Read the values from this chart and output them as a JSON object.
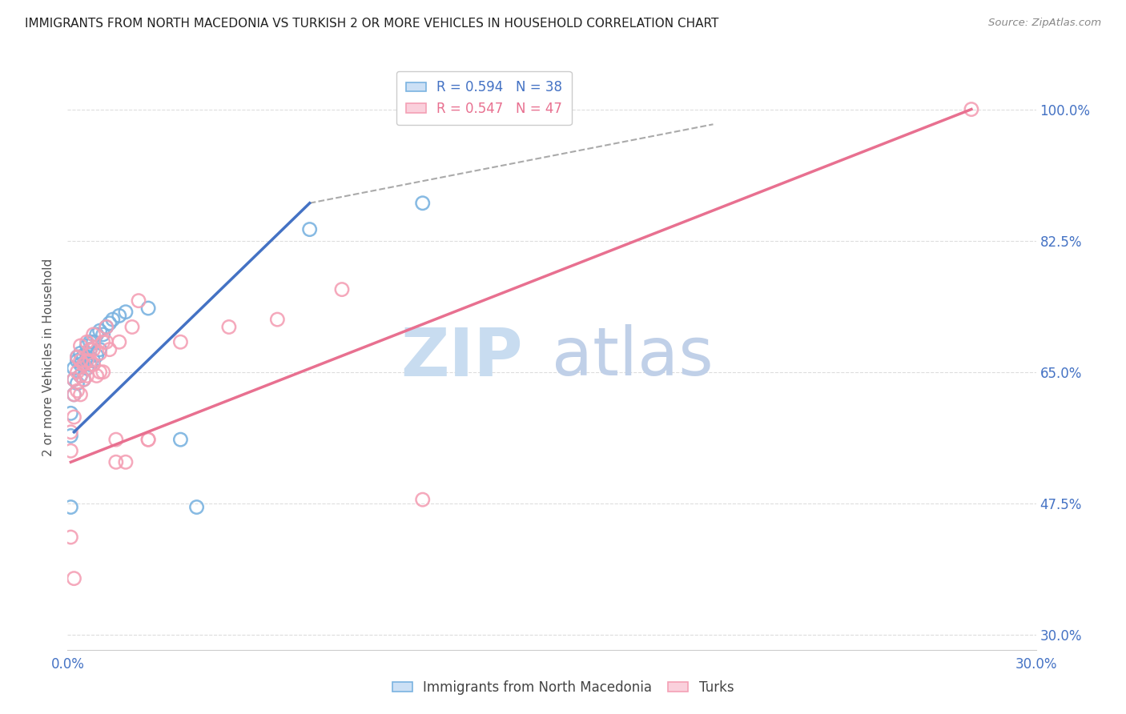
{
  "title": "IMMIGRANTS FROM NORTH MACEDONIA VS TURKISH 2 OR MORE VEHICLES IN HOUSEHOLD CORRELATION CHART",
  "source": "Source: ZipAtlas.com",
  "ylabel": "2 or more Vehicles in Household",
  "xlim": [
    0.0,
    0.3
  ],
  "ylim": [
    0.28,
    1.06
  ],
  "xtick_positions": [
    0.0,
    0.05,
    0.1,
    0.15,
    0.2,
    0.25,
    0.3
  ],
  "xticklabels": [
    "0.0%",
    "",
    "",
    "",
    "",
    "",
    "30.0%"
  ],
  "yticks_right": [
    0.3,
    0.475,
    0.65,
    0.825,
    1.0
  ],
  "yticklabels_right": [
    "30.0%",
    "47.5%",
    "65.0%",
    "82.5%",
    "100.0%"
  ],
  "blue_color": "#7ab3e0",
  "pink_color": "#f4a0b5",
  "blue_line_color": "#4472c4",
  "pink_line_color": "#e87090",
  "right_tick_color": "#4472c4",
  "bottom_tick_color": "#4472c4",
  "grid_color": "#dddddd",
  "background_color": "#ffffff",
  "title_color": "#222222",
  "axis_label_color": "#555555",
  "blue_scatter": [
    [
      0.001,
      0.595
    ],
    [
      0.001,
      0.565
    ],
    [
      0.002,
      0.62
    ],
    [
      0.002,
      0.64
    ],
    [
      0.002,
      0.655
    ],
    [
      0.003,
      0.635
    ],
    [
      0.003,
      0.665
    ],
    [
      0.003,
      0.67
    ],
    [
      0.004,
      0.645
    ],
    [
      0.004,
      0.66
    ],
    [
      0.004,
      0.675
    ],
    [
      0.005,
      0.64
    ],
    [
      0.005,
      0.66
    ],
    [
      0.005,
      0.672
    ],
    [
      0.006,
      0.655
    ],
    [
      0.006,
      0.67
    ],
    [
      0.006,
      0.685
    ],
    [
      0.007,
      0.66
    ],
    [
      0.007,
      0.68
    ],
    [
      0.007,
      0.69
    ],
    [
      0.008,
      0.665
    ],
    [
      0.008,
      0.69
    ],
    [
      0.009,
      0.672
    ],
    [
      0.009,
      0.7
    ],
    [
      0.01,
      0.68
    ],
    [
      0.01,
      0.705
    ],
    [
      0.011,
      0.7
    ],
    [
      0.012,
      0.71
    ],
    [
      0.013,
      0.715
    ],
    [
      0.014,
      0.72
    ],
    [
      0.016,
      0.725
    ],
    [
      0.018,
      0.73
    ],
    [
      0.025,
      0.735
    ],
    [
      0.035,
      0.56
    ],
    [
      0.04,
      0.47
    ],
    [
      0.075,
      0.84
    ],
    [
      0.11,
      0.875
    ],
    [
      0.001,
      0.47
    ]
  ],
  "pink_scatter": [
    [
      0.001,
      0.57
    ],
    [
      0.001,
      0.545
    ],
    [
      0.001,
      0.43
    ],
    [
      0.002,
      0.59
    ],
    [
      0.002,
      0.62
    ],
    [
      0.002,
      0.64
    ],
    [
      0.003,
      0.625
    ],
    [
      0.003,
      0.65
    ],
    [
      0.003,
      0.67
    ],
    [
      0.004,
      0.62
    ],
    [
      0.004,
      0.645
    ],
    [
      0.004,
      0.665
    ],
    [
      0.004,
      0.685
    ],
    [
      0.005,
      0.64
    ],
    [
      0.005,
      0.66
    ],
    [
      0.006,
      0.645
    ],
    [
      0.006,
      0.665
    ],
    [
      0.006,
      0.69
    ],
    [
      0.007,
      0.665
    ],
    [
      0.007,
      0.68
    ],
    [
      0.008,
      0.66
    ],
    [
      0.008,
      0.68
    ],
    [
      0.008,
      0.7
    ],
    [
      0.009,
      0.645
    ],
    [
      0.01,
      0.65
    ],
    [
      0.01,
      0.675
    ],
    [
      0.011,
      0.65
    ],
    [
      0.011,
      0.69
    ],
    [
      0.012,
      0.69
    ],
    [
      0.012,
      0.71
    ],
    [
      0.013,
      0.68
    ],
    [
      0.015,
      0.56
    ],
    [
      0.015,
      0.53
    ],
    [
      0.016,
      0.69
    ],
    [
      0.018,
      0.53
    ],
    [
      0.02,
      0.71
    ],
    [
      0.022,
      0.745
    ],
    [
      0.025,
      0.56
    ],
    [
      0.025,
      0.56
    ],
    [
      0.035,
      0.69
    ],
    [
      0.05,
      0.71
    ],
    [
      0.065,
      0.72
    ],
    [
      0.085,
      0.76
    ],
    [
      0.11,
      0.48
    ],
    [
      0.002,
      0.375
    ],
    [
      0.28,
      1.0
    ]
  ],
  "blue_trendline": [
    [
      0.002,
      0.57
    ],
    [
      0.075,
      0.875
    ]
  ],
  "pink_trendline": [
    [
      0.001,
      0.53
    ],
    [
      0.28,
      1.0
    ]
  ],
  "dashed_line": [
    [
      0.075,
      0.875
    ],
    [
      0.2,
      0.98
    ]
  ],
  "watermark_zip_color": "#c8dcf0",
  "watermark_atlas_color": "#c0d0e8"
}
